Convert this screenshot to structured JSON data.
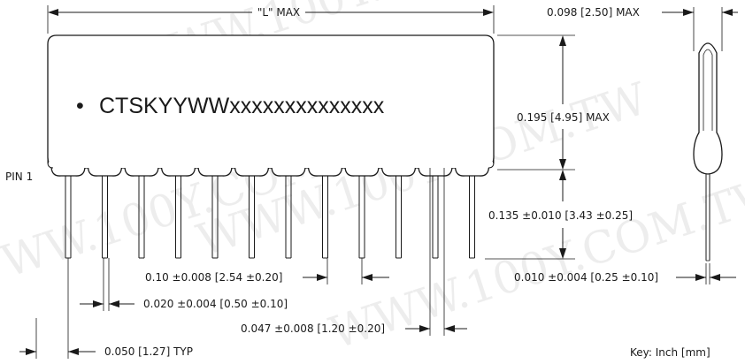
{
  "watermark": "WWW.100Y.COM.TW",
  "body_marking": {
    "bullet": "•",
    "text": "CTSKYYWWxxxxxxxxxxxxxx"
  },
  "labels": {
    "length": "\"L\" MAX",
    "width": "0.098 [2.50] MAX",
    "height": "0.195 [4.95] MAX",
    "pin1": "PIN 1",
    "seating_height": "0.135 ±0.010 [3.43 ±0.25]",
    "pin_pitch": "0.10 ±0.008 [2.54 ±0.20]",
    "lead_width": "0.020 ±0.004 [0.50 ±0.10]",
    "lead_thickness": "0.010 ±0.004 [0.25 ±0.10]",
    "shoulder_width": "0.047 ±0.008 [1.20 ±0.20]",
    "end_offset": "0.050 [1.27] TYP",
    "key": "Key: Inch [mm]"
  },
  "pin_count": 12
}
